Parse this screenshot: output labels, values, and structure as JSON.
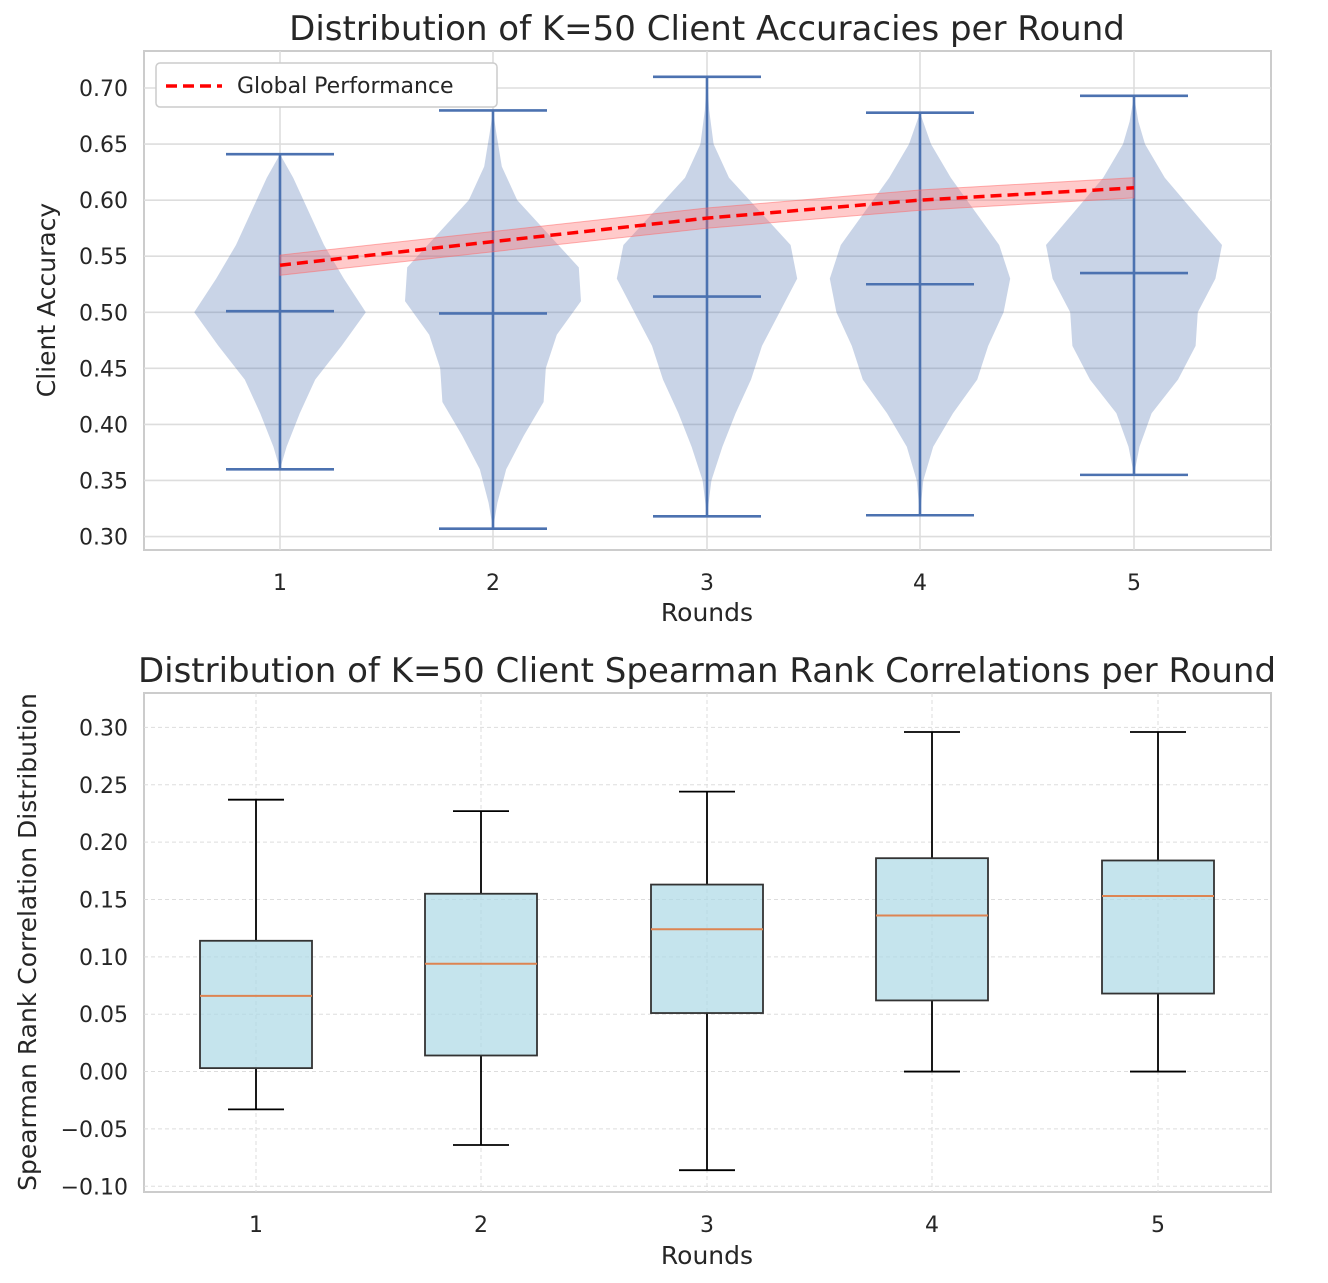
{
  "chart_data": [
    {
      "type": "violin",
      "title": "Distribution of K=50 Client Accuracies per Round",
      "xlabel": "Rounds",
      "ylabel": "Client Accuracy",
      "categories": [
        "1",
        "2",
        "3",
        "4",
        "5"
      ],
      "ylim": [
        0.288,
        0.733
      ],
      "yticks": [
        0.3,
        0.35,
        0.4,
        0.45,
        0.5,
        0.55,
        0.6,
        0.65,
        0.7
      ],
      "ytick_labels": [
        "0.30",
        "0.35",
        "0.40",
        "0.45",
        "0.50",
        "0.55",
        "0.60",
        "0.65",
        "0.70"
      ],
      "grid": true,
      "violins": [
        {
          "min": 0.36,
          "max": 0.641,
          "median": 0.501,
          "density": [
            [
              0.36,
              0.0
            ],
            [
              0.38,
              0.06
            ],
            [
              0.41,
              0.18
            ],
            [
              0.44,
              0.32
            ],
            [
              0.47,
              0.56
            ],
            [
              0.5,
              0.78
            ],
            [
              0.53,
              0.58
            ],
            [
              0.56,
              0.4
            ],
            [
              0.59,
              0.26
            ],
            [
              0.62,
              0.12
            ],
            [
              0.641,
              0.0
            ]
          ]
        },
        {
          "min": 0.307,
          "max": 0.68,
          "median": 0.499,
          "density": [
            [
              0.307,
              0.0
            ],
            [
              0.33,
              0.04
            ],
            [
              0.36,
              0.12
            ],
            [
              0.39,
              0.28
            ],
            [
              0.42,
              0.46
            ],
            [
              0.45,
              0.48
            ],
            [
              0.48,
              0.58
            ],
            [
              0.51,
              0.8
            ],
            [
              0.54,
              0.78
            ],
            [
              0.57,
              0.5
            ],
            [
              0.6,
              0.22
            ],
            [
              0.63,
              0.08
            ],
            [
              0.66,
              0.03
            ],
            [
              0.68,
              0.0
            ]
          ]
        },
        {
          "min": 0.318,
          "max": 0.71,
          "median": 0.514,
          "density": [
            [
              0.318,
              0.0
            ],
            [
              0.35,
              0.04
            ],
            [
              0.38,
              0.14
            ],
            [
              0.41,
              0.26
            ],
            [
              0.44,
              0.4
            ],
            [
              0.47,
              0.5
            ],
            [
              0.5,
              0.66
            ],
            [
              0.53,
              0.82
            ],
            [
              0.56,
              0.76
            ],
            [
              0.59,
              0.48
            ],
            [
              0.62,
              0.2
            ],
            [
              0.65,
              0.06
            ],
            [
              0.68,
              0.02
            ],
            [
              0.71,
              0.0
            ]
          ]
        },
        {
          "min": 0.319,
          "max": 0.678,
          "median": 0.525,
          "density": [
            [
              0.319,
              0.0
            ],
            [
              0.35,
              0.03
            ],
            [
              0.38,
              0.12
            ],
            [
              0.41,
              0.3
            ],
            [
              0.44,
              0.52
            ],
            [
              0.47,
              0.62
            ],
            [
              0.5,
              0.76
            ],
            [
              0.53,
              0.82
            ],
            [
              0.56,
              0.72
            ],
            [
              0.59,
              0.5
            ],
            [
              0.62,
              0.28
            ],
            [
              0.65,
              0.1
            ],
            [
              0.678,
              0.0
            ]
          ]
        },
        {
          "min": 0.355,
          "max": 0.693,
          "median": 0.535,
          "density": [
            [
              0.355,
              0.0
            ],
            [
              0.38,
              0.05
            ],
            [
              0.41,
              0.16
            ],
            [
              0.44,
              0.4
            ],
            [
              0.47,
              0.56
            ],
            [
              0.5,
              0.58
            ],
            [
              0.53,
              0.74
            ],
            [
              0.56,
              0.8
            ],
            [
              0.59,
              0.54
            ],
            [
              0.62,
              0.28
            ],
            [
              0.65,
              0.1
            ],
            [
              0.67,
              0.04
            ],
            [
              0.693,
              0.0
            ]
          ]
        }
      ],
      "global_performance": {
        "label": "Global Performance",
        "x": [
          1,
          2,
          3,
          4,
          5
        ],
        "y": [
          0.542,
          0.563,
          0.584,
          0.6,
          0.611
        ],
        "band": 0.009
      },
      "legend_position": "top-left",
      "colors": {
        "violin": "#4c72b0",
        "line": "#ff0000",
        "band": "#ff9999"
      }
    },
    {
      "type": "box",
      "title": "Distribution of K=50 Client Spearman Rank Correlations per Round",
      "xlabel": "Rounds",
      "ylabel": "Spearman Rank Correlation Distribution",
      "categories": [
        "1",
        "2",
        "3",
        "4",
        "5"
      ],
      "ylim": [
        -0.105,
        0.33
      ],
      "yticks": [
        -0.1,
        -0.05,
        0.0,
        0.05,
        0.1,
        0.15,
        0.2,
        0.25,
        0.3
      ],
      "ytick_labels": [
        "−0.10",
        "−0.05",
        "0.00",
        "0.05",
        "0.10",
        "0.15",
        "0.20",
        "0.25",
        "0.30"
      ],
      "grid": "dashed",
      "boxes": [
        {
          "whislo": -0.033,
          "q1": 0.003,
          "med": 0.066,
          "q3": 0.114,
          "whishi": 0.237
        },
        {
          "whislo": -0.064,
          "q1": 0.014,
          "med": 0.094,
          "q3": 0.155,
          "whishi": 0.227
        },
        {
          "whislo": -0.086,
          "q1": 0.051,
          "med": 0.124,
          "q3": 0.163,
          "whishi": 0.244
        },
        {
          "whislo": 0.0,
          "q1": 0.062,
          "med": 0.136,
          "q3": 0.186,
          "whishi": 0.296
        },
        {
          "whislo": 0.0,
          "q1": 0.068,
          "med": 0.153,
          "q3": 0.184,
          "whishi": 0.296
        }
      ],
      "colors": {
        "box": "#add8e6",
        "median": "#dd8452",
        "edge": "#000000"
      }
    }
  ]
}
